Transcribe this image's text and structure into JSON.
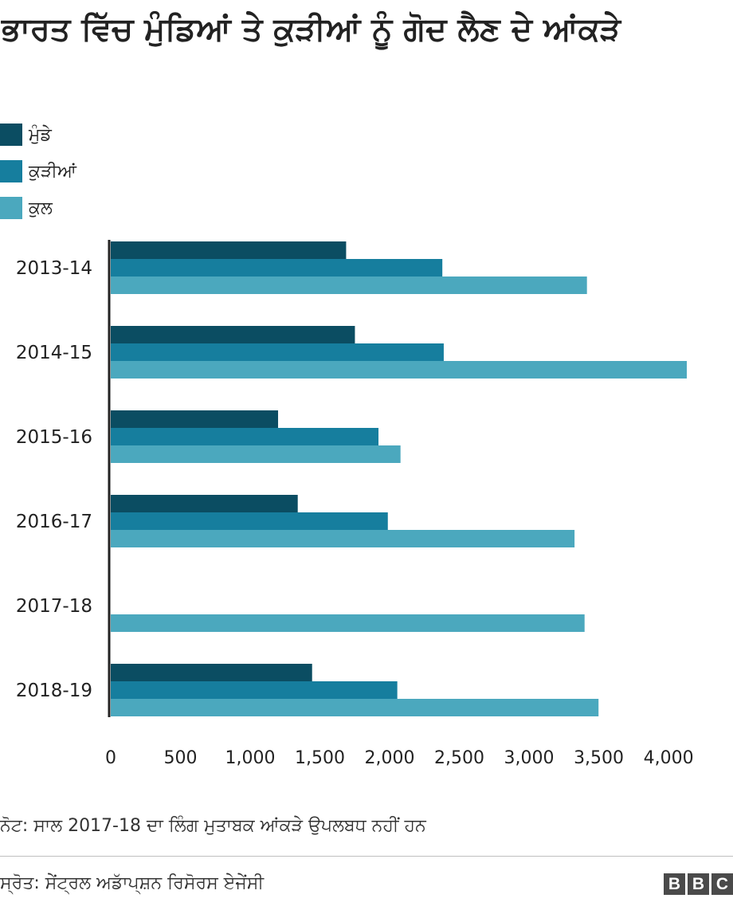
{
  "title": "ਭਾਰਤ ਵਿੱਚ ਮੁੰਡਿਆਂ ਤੇ ਕੁੜੀਆਂ ਨੂੰ ਗੋਦ ਲੈਣ ਦੇ ਆਂਕੜੇ",
  "legend": [
    {
      "label": "ਮੁੰਡੇ",
      "color": "#0b4d62"
    },
    {
      "label": "ਕੁੜੀਆਂ",
      "color": "#167e9e"
    },
    {
      "label": "ਕੁਲ",
      "color": "#4ba8be"
    }
  ],
  "chart_data": {
    "type": "bar",
    "orientation": "horizontal",
    "categories": [
      "2013-14",
      "2014-15",
      "2015-16",
      "2016-17",
      "2017-18",
      "2018-19"
    ],
    "series": [
      {
        "name": "ਮੁੰਡੇ",
        "color": "#0b4d62",
        "values": [
          1688,
          1751,
          1200,
          1341,
          null,
          1444
        ]
      },
      {
        "name": "ਕੁੜੀਆਂ",
        "color": "#167e9e",
        "values": [
          2378,
          2388,
          1920,
          1987,
          null,
          2055
        ]
      },
      {
        "name": "ਕੁਲ",
        "color": "#4ba8be",
        "values": [
          3415,
          4131,
          2078,
          3326,
          3398,
          3498
        ]
      }
    ],
    "xticks": [
      0,
      500,
      1000,
      1500,
      2000,
      2500,
      3000,
      3500,
      4000
    ],
    "xtick_labels": [
      "0",
      "500",
      "1,000",
      "1,500",
      "2,000",
      "2,500",
      "3,000",
      "3,500",
      "4,000"
    ],
    "xlim": [
      0,
      4131
    ],
    "grid": false,
    "legend_position": "top-left"
  },
  "note": "ਨੋਟ: ਸਾਲ 2017-18 ਦਾ ਲਿੰਗ ਮੁਤਾਬਕ ਆਂਕੜੇ ਉਪਲਬਧ ਨਹੀਂ ਹਨ",
  "source": "ਸ੍ਰੋਤ: ਸੇਂਟ੍ਰਲ ਅਡਾੱਪ੍ਸ਼ਨ ਰਿਸੋਰਸ ਏਜੇਂਸੀ",
  "logo": [
    "B",
    "B",
    "C"
  ]
}
